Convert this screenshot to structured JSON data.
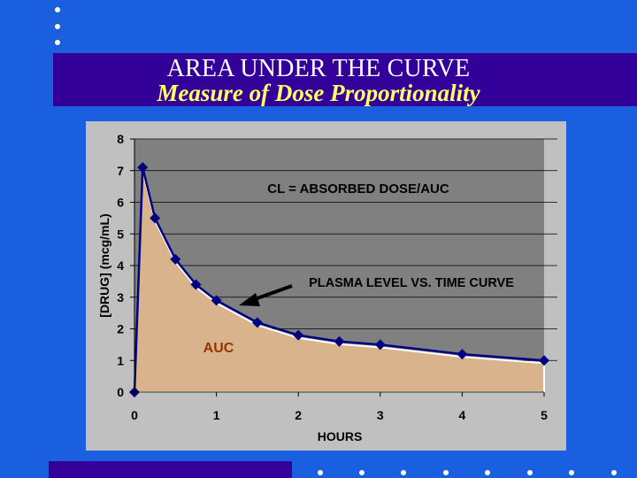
{
  "slide": {
    "title": "AREA UNDER THE CURVE",
    "subtitle": "Measure of Dose Proportionality",
    "colors": {
      "background": "#1a5fe0",
      "band": "#330099",
      "subtitle": "#ffff66"
    }
  },
  "chart_data": {
    "type": "area",
    "xlabel": "HOURS",
    "ylabel": "[DRUG] (mcg/mL)",
    "xlim": [
      0,
      5
    ],
    "ylim": [
      0,
      8
    ],
    "xticks": [
      "0",
      "1",
      "2",
      "3",
      "4",
      "5"
    ],
    "yticks": [
      "0",
      "1",
      "2",
      "3",
      "4",
      "5",
      "6",
      "7",
      "8"
    ],
    "grid": "horizontal",
    "series": [
      {
        "x": [
          0,
          0.1,
          0.25,
          0.5,
          0.75,
          1.0,
          1.5,
          2.0,
          2.5,
          3.0,
          4.0,
          5.0
        ],
        "y": [
          0,
          7.1,
          5.5,
          4.2,
          3.4,
          2.9,
          2.2,
          1.8,
          1.6,
          1.5,
          1.2,
          1.0
        ]
      }
    ],
    "annotations": {
      "equation": "CL = ABSORBED DOSE/AUC",
      "curve_label": "PLASMA LEVEL VS. TIME CURVE",
      "area_label": "AUC"
    },
    "colors": {
      "area": "#d9b38c",
      "line": "#000080",
      "plot_bg": "#808080",
      "frame": "#c0c0c0",
      "auc_text": "#993300"
    }
  }
}
